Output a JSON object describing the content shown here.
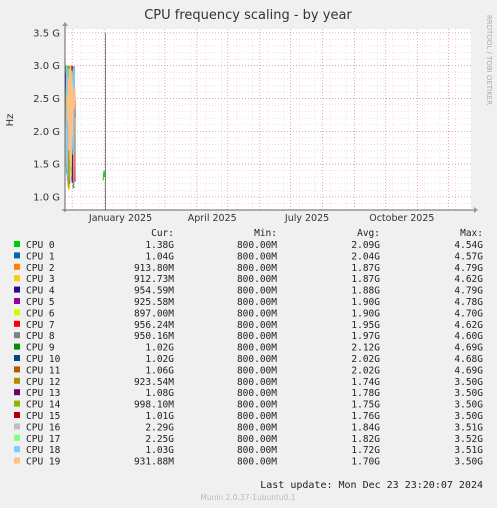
{
  "chart_data": {
    "type": "line",
    "title": "CPU frequency scaling - by year",
    "ylabel": "Hz",
    "side_label": "RRDTOOL / TOBI OETIKER",
    "x_ticks": [
      "January 2025",
      "April 2025",
      "July 2025",
      "October 2025"
    ],
    "y_ticks": [
      "1.0 G",
      "1.5 G",
      "2.0 G",
      "2.5 G",
      "3.0 G",
      "3.5 G"
    ],
    "ylim": [
      0.8,
      3.56
    ],
    "grid": true,
    "columns": [
      "Cur:",
      "Min:",
      "Avg:",
      "Max:"
    ],
    "legend": [
      {
        "name": "CPU 0",
        "color": "#00cc00",
        "cur": "1.38G",
        "min": "800.00M",
        "avg": "2.09G",
        "max": "4.54G"
      },
      {
        "name": "CPU 1",
        "color": "#0066b3",
        "cur": "1.04G",
        "min": "800.00M",
        "avg": "2.04G",
        "max": "4.57G"
      },
      {
        "name": "CPU 2",
        "color": "#ff8000",
        "cur": "913.80M",
        "min": "800.00M",
        "avg": "1.87G",
        "max": "4.79G"
      },
      {
        "name": "CPU 3",
        "color": "#ffcc00",
        "cur": "912.73M",
        "min": "800.00M",
        "avg": "1.87G",
        "max": "4.62G"
      },
      {
        "name": "CPU 4",
        "color": "#330099",
        "cur": "954.59M",
        "min": "800.00M",
        "avg": "1.88G",
        "max": "4.79G"
      },
      {
        "name": "CPU 5",
        "color": "#990099",
        "cur": "925.58M",
        "min": "800.00M",
        "avg": "1.90G",
        "max": "4.78G"
      },
      {
        "name": "CPU 6",
        "color": "#ccff00",
        "cur": "897.00M",
        "min": "800.00M",
        "avg": "1.90G",
        "max": "4.70G"
      },
      {
        "name": "CPU 7",
        "color": "#ff0000",
        "cur": "956.24M",
        "min": "800.00M",
        "avg": "1.95G",
        "max": "4.62G"
      },
      {
        "name": "CPU 8",
        "color": "#808080",
        "cur": "950.16M",
        "min": "800.00M",
        "avg": "1.97G",
        "max": "4.60G"
      },
      {
        "name": "CPU 9",
        "color": "#008f00",
        "cur": "1.02G",
        "min": "800.00M",
        "avg": "2.12G",
        "max": "4.69G"
      },
      {
        "name": "CPU 10",
        "color": "#00487d",
        "cur": "1.02G",
        "min": "800.00M",
        "avg": "2.02G",
        "max": "4.68G"
      },
      {
        "name": "CPU 11",
        "color": "#b35a00",
        "cur": "1.06G",
        "min": "800.00M",
        "avg": "2.02G",
        "max": "4.69G"
      },
      {
        "name": "CPU 12",
        "color": "#b38f00",
        "cur": "923.54M",
        "min": "800.00M",
        "avg": "1.74G",
        "max": "3.50G"
      },
      {
        "name": "CPU 13",
        "color": "#6b006b",
        "cur": "1.08G",
        "min": "800.00M",
        "avg": "1.78G",
        "max": "3.50G"
      },
      {
        "name": "CPU 14",
        "color": "#8fb300",
        "cur": "998.10M",
        "min": "800.00M",
        "avg": "1.75G",
        "max": "3.50G"
      },
      {
        "name": "CPU 15",
        "color": "#b30000",
        "cur": "1.01G",
        "min": "800.00M",
        "avg": "1.76G",
        "max": "3.50G"
      },
      {
        "name": "CPU 16",
        "color": "#bebebe",
        "cur": "2.29G",
        "min": "800.00M",
        "avg": "1.84G",
        "max": "3.51G"
      },
      {
        "name": "CPU 17",
        "color": "#80ff80",
        "cur": "2.25G",
        "min": "800.00M",
        "avg": "1.82G",
        "max": "3.52G"
      },
      {
        "name": "CPU 18",
        "color": "#80c9ff",
        "cur": "1.03G",
        "min": "800.00M",
        "avg": "1.72G",
        "max": "3.51G"
      },
      {
        "name": "CPU 19",
        "color": "#ffc080",
        "cur": "931.88M",
        "min": "800.00M",
        "avg": "1.70G",
        "max": "3.50G"
      }
    ],
    "last_update": "Last update: Mon Dec 23 23:20:07 2024",
    "footer": "Munin 2.0.37-1ubuntu0.1"
  }
}
